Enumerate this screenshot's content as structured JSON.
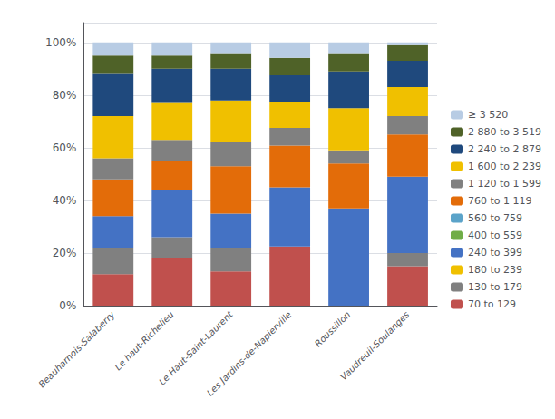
{
  "chart_data": {
    "type": "bar",
    "stacked": true,
    "categories": [
      "Beauharnois-Salaberry",
      "Le haut-Richelieu",
      "Le Haut-Saint-Laurent",
      "Les Jardins-de-Napierville",
      "Roussillon",
      "Vaudreuil-Soulanges"
    ],
    "series": [
      {
        "name": "70 to 129",
        "color": "#C0504D",
        "values": [
          12,
          18,
          13,
          22.5,
          0,
          15
        ]
      },
      {
        "name": "130 to 179",
        "color": "#808080",
        "values": [
          10,
          8,
          9,
          0,
          0,
          5
        ]
      },
      {
        "name": "180 to 239",
        "color": "#F0C000",
        "values": [
          0,
          0,
          0,
          0,
          0,
          0
        ]
      },
      {
        "name": "240 to 399",
        "color": "#4472C4",
        "values": [
          12,
          18,
          13,
          22.5,
          37,
          29
        ]
      },
      {
        "name": "400 to 559",
        "color": "#70AD47",
        "values": [
          0,
          0,
          0,
          0,
          0,
          0
        ]
      },
      {
        "name": "560 to 759",
        "color": "#5BA3C9",
        "values": [
          0,
          0,
          0,
          0,
          0,
          0
        ]
      },
      {
        "name": "760 to 1 119",
        "color": "#E36C09",
        "values": [
          14,
          11,
          18,
          15.833333333333334,
          17,
          16
        ]
      },
      {
        "name": "1 120 to 1 599",
        "color": "#808080",
        "values": [
          8,
          8,
          9,
          6.666666666666667,
          5,
          7
        ]
      },
      {
        "name": "1 600 to 2 239",
        "color": "#F0C000",
        "values": [
          16,
          14,
          16,
          10,
          16,
          11
        ]
      },
      {
        "name": "2 240 to 2 879",
        "color": "#1F497D",
        "values": [
          16,
          13,
          12,
          10,
          14,
          10
        ]
      },
      {
        "name": "2 880 to 3 519",
        "color": "#4F6228",
        "values": [
          7,
          5,
          6,
          6.666666666666667,
          7,
          6
        ]
      },
      {
        "name": "≥ 3 520",
        "color": "#B8CCE4",
        "values": [
          5,
          5,
          4,
          5.833333333333333,
          4,
          1
        ]
      }
    ],
    "ylim": [
      0,
      107.5
    ],
    "yticks": [
      {
        "value": 0,
        "label": "0%"
      },
      {
        "value": 20,
        "label": "20%"
      },
      {
        "value": 40,
        "label": "40%"
      },
      {
        "value": 60,
        "label": "60%"
      },
      {
        "value": 80,
        "label": "80%"
      },
      {
        "value": 100,
        "label": "100%"
      }
    ],
    "grid": true,
    "legend": "right"
  }
}
